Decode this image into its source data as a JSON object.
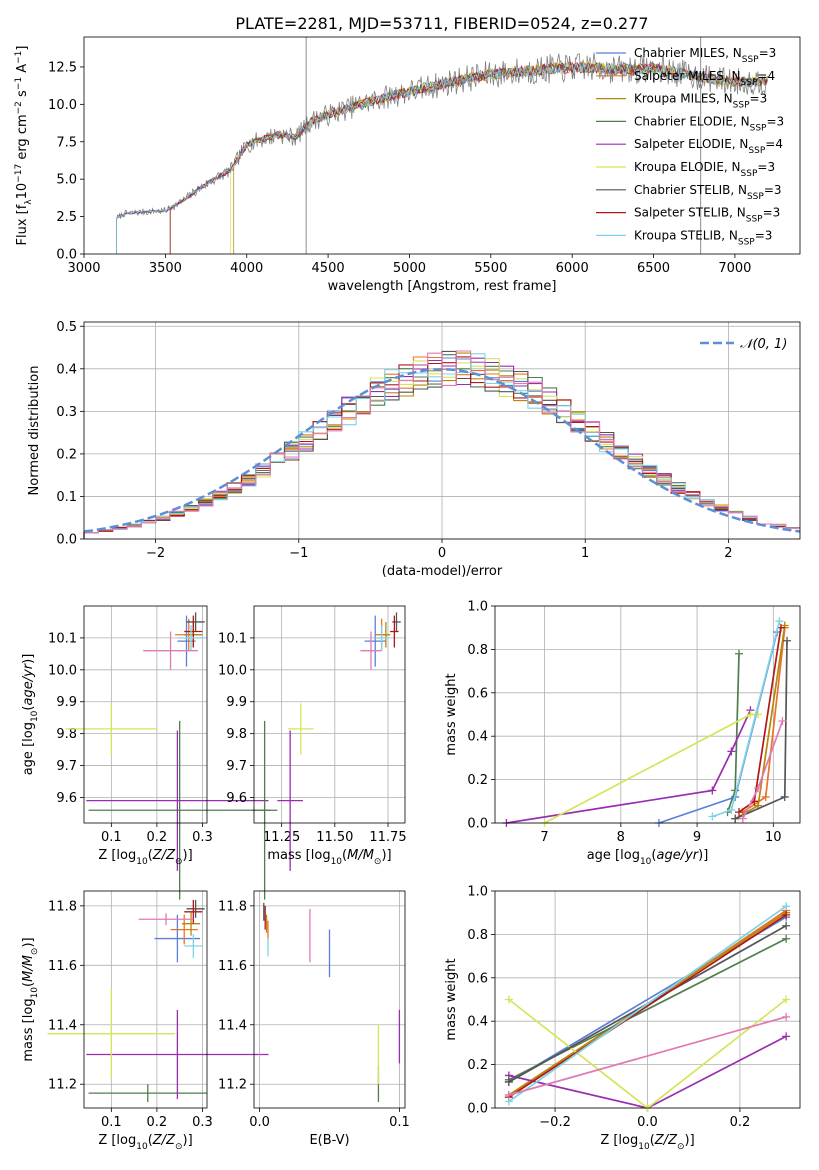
{
  "figure_title": "PLATE=2281, MJD=53711, FIBERID=0524, z=0.277",
  "colors": {
    "Chabrier MILES": "#5b7fd8",
    "Salpeter MILES": "#e8742a",
    "Kroupa MILES": "#b8860b",
    "Chabrier ELODIE": "#507d50",
    "Salpeter ELODIE": "#9a2cb0",
    "Kroupa ELODIE": "#d4e55a",
    "Chabrier STELIB": "#555555",
    "Salpeter STELIB": "#b01818",
    "Kroupa STELIB": "#7fd3e6",
    "pink": "#e07ab4",
    "normal": "#5b8fd8"
  },
  "chart_data": [
    {
      "id": "spectrum",
      "type": "line",
      "title": "PLATE=2281, MJD=53711, FIBERID=0524, z=0.277",
      "xlabel": "wavelength [Angstrom, rest frame]",
      "ylabel": "Flux [f_λ 10^-17 erg cm^-2 s^-1 A^-1]",
      "xlim": [
        3000,
        7400
      ],
      "ylim": [
        0,
        14.5
      ],
      "xticks": [
        "3000",
        "3500",
        "4000",
        "4500",
        "5000",
        "5500",
        "6000",
        "6500",
        "7000"
      ],
      "yticks": [
        "0.0",
        "2.5",
        "5.0",
        "7.5",
        "10.0",
        "12.5"
      ],
      "legend_position": "top-right",
      "legend": [
        "Chabrier MILES, N_SSP=3",
        "Salpeter MILES, N_SSP=4",
        "Kroupa MILES, N_SSP=3",
        "Chabrier ELODIE, N_SSP=3",
        "Salpeter ELODIE, N_SSP=4",
        "Kroupa ELODIE, N_SSP=3",
        "Chabrier STELIB, N_SSP=3",
        "Salpeter STELIB, N_SSP=3",
        "Kroupa STELIB, N_SSP=3"
      ],
      "legend_labels": [
        {
          "pre": "Chabrier MILES, N",
          "sub": "SSP",
          "post": "=3"
        },
        {
          "pre": "Salpeter MILES, N",
          "sub": "SSP",
          "post": "=4"
        },
        {
          "pre": "Kroupa MILES, N",
          "sub": "SSP",
          "post": "=3"
        },
        {
          "pre": "Chabrier ELODIE, N",
          "sub": "SSP",
          "post": "=3"
        },
        {
          "pre": "Salpeter ELODIE, N",
          "sub": "SSP",
          "post": "=4"
        },
        {
          "pre": "Kroupa ELODIE, N",
          "sub": "SSP",
          "post": "=3"
        },
        {
          "pre": "Chabrier STELIB, N",
          "sub": "SSP",
          "post": "=3"
        },
        {
          "pre": "Salpeter STELIB, N",
          "sub": "SSP",
          "post": "=3"
        },
        {
          "pre": "Kroupa STELIB, N",
          "sub": "SSP",
          "post": "=3"
        }
      ],
      "series_start": [
        3200,
        3200,
        3920,
        3530,
        3200,
        3900,
        3200,
        3530,
        3200
      ],
      "series_end": [
        7200,
        7200,
        7200,
        7200,
        7200,
        7200,
        7200,
        7200,
        7200
      ],
      "continuum": {
        "x": [
          3200,
          3250,
          3350,
          3500,
          3600,
          3700,
          3800,
          3900,
          4000,
          4100,
          4200,
          4300,
          4400,
          4500,
          4700,
          4900,
          5100,
          5300,
          5500,
          5700,
          5900,
          6100,
          6300,
          6500,
          6700,
          6900,
          7100,
          7200
        ],
        "y": [
          2.4,
          2.7,
          2.8,
          2.9,
          3.5,
          4.3,
          5.0,
          5.6,
          7.3,
          7.7,
          8.0,
          7.8,
          8.9,
          9.3,
          10.0,
          10.6,
          11.1,
          11.6,
          12.0,
          12.2,
          12.4,
          12.5,
          12.3,
          12.4,
          12.0,
          11.6,
          11.5,
          11.6
        ]
      },
      "spikes": [
        {
          "x": 4365,
          "y": 14.5
        },
        {
          "x": 6790,
          "y": 14.5
        }
      ]
    },
    {
      "id": "residuals",
      "type": "bar",
      "xlabel": "(data-model)/error",
      "ylabel": "Normed distribution",
      "xlim": [
        -2.5,
        2.5
      ],
      "ylim": [
        0,
        0.51
      ],
      "xticks": [
        "−2",
        "−1",
        "0",
        "1",
        "2"
      ],
      "yticks": [
        "0.0",
        "0.1",
        "0.2",
        "0.3",
        "0.4",
        "0.5"
      ],
      "legend_position": "top-right",
      "legend": [
        "𝒩(0, 1)"
      ],
      "bin_width": 0.1,
      "bins_from": -2.5,
      "reference": "normal(0,1)"
    },
    {
      "id": "Z-age",
      "type": "scatter",
      "xlabel": "Z [log10(Z/Z⊙)]",
      "ylabel": "age [log10(age/yr)]",
      "xlim": [
        0.04,
        0.31
      ],
      "ylim": [
        9.52,
        10.2
      ],
      "xticks": [
        "0.1",
        "0.2",
        "0.3"
      ],
      "yticks": [
        "9.6",
        "9.7",
        "9.8",
        "9.9",
        "10.0",
        "10.1"
      ],
      "points": [
        {
          "series": "Chabrier MILES",
          "x": 0.265,
          "y": 10.09,
          "xerr": 0.02,
          "yerr": 0.08
        },
        {
          "series": "Salpeter MILES",
          "x": 0.27,
          "y": 10.11,
          "xerr": 0.03,
          "yerr": 0.05
        },
        {
          "series": "Kroupa MILES",
          "x": 0.28,
          "y": 10.11,
          "xerr": 0.02,
          "yerr": 0.04
        },
        {
          "series": "Chabrier ELODIE",
          "x": 0.25,
          "y": 9.56,
          "xerr": 0.2,
          "yerr": 0.28
        },
        {
          "series": "Salpeter ELODIE",
          "x": 0.245,
          "y": 9.59,
          "xerr": 0.2,
          "yerr": 0.22
        },
        {
          "series": "Kroupa ELODIE",
          "x": 0.1,
          "y": 9.815,
          "xerr": 0.1,
          "yerr": 0.08
        },
        {
          "series": "Chabrier STELIB",
          "x": 0.285,
          "y": 10.15,
          "xerr": 0.02,
          "yerr": 0.03
        },
        {
          "series": "Salpeter STELIB",
          "x": 0.28,
          "y": 10.12,
          "xerr": 0.02,
          "yerr": 0.05
        },
        {
          "series": "Kroupa STELIB",
          "x": 0.275,
          "y": 10.1,
          "xerr": 0.03,
          "yerr": 0.04
        },
        {
          "series": "pink",
          "x": 0.23,
          "y": 10.06,
          "xerr": 0.06,
          "yerr": 0.06
        }
      ]
    },
    {
      "id": "mass-age",
      "type": "scatter",
      "xlabel": "mass [log10(M/M⊙)]",
      "ylabel": "",
      "xlim": [
        11.12,
        11.83
      ],
      "ylim": [
        9.52,
        10.2
      ],
      "xticks": [
        "11.25",
        "11.50",
        "11.75"
      ],
      "yticks": [
        "9.6",
        "9.7",
        "9.8",
        "9.9",
        "10.0",
        "10.1"
      ],
      "points": [
        {
          "series": "Chabrier MILES",
          "x": 11.69,
          "y": 10.09,
          "xerr": 0.05,
          "yerr": 0.08
        },
        {
          "series": "Salpeter MILES",
          "x": 11.72,
          "y": 10.11,
          "xerr": 0.03,
          "yerr": 0.05
        },
        {
          "series": "Kroupa MILES",
          "x": 11.74,
          "y": 10.11,
          "xerr": 0.02,
          "yerr": 0.04
        },
        {
          "series": "Chabrier ELODIE",
          "x": 11.17,
          "y": 9.56,
          "xerr": 0.06,
          "yerr": 0.28
        },
        {
          "series": "Salpeter ELODIE",
          "x": 11.29,
          "y": 9.59,
          "xerr": 0.06,
          "yerr": 0.22
        },
        {
          "series": "Kroupa ELODIE",
          "x": 11.34,
          "y": 9.815,
          "xerr": 0.06,
          "yerr": 0.08
        },
        {
          "series": "Chabrier STELIB",
          "x": 11.79,
          "y": 10.15,
          "xerr": 0.02,
          "yerr": 0.03
        },
        {
          "series": "Salpeter STELIB",
          "x": 11.78,
          "y": 10.12,
          "xerr": 0.02,
          "yerr": 0.05
        },
        {
          "series": "Kroupa STELIB",
          "x": 11.72,
          "y": 10.1,
          "xerr": 0.03,
          "yerr": 0.04
        },
        {
          "series": "pink",
          "x": 11.67,
          "y": 10.06,
          "xerr": 0.05,
          "yerr": 0.06
        }
      ]
    },
    {
      "id": "age-weight",
      "type": "line",
      "xlabel": "age [log10(age/yr)]",
      "ylabel": "mass weight",
      "xlim": [
        6.35,
        10.35
      ],
      "ylim": [
        0,
        1.0
      ],
      "xticks": [
        "7",
        "8",
        "9",
        "10"
      ],
      "yticks": [
        "0.0",
        "0.2",
        "0.4",
        "0.6",
        "0.8",
        "1.0"
      ],
      "series": [
        {
          "name": "Chabrier MILES",
          "x": [
            8.5,
            9.5,
            10.05
          ],
          "y": [
            0.0,
            0.12,
            0.88
          ]
        },
        {
          "name": "Salpeter MILES",
          "x": [
            9.6,
            9.9,
            10.15
          ],
          "y": [
            0.05,
            0.12,
            0.9
          ]
        },
        {
          "name": "Kroupa MILES",
          "x": [
            9.5,
            9.8,
            10.15
          ],
          "y": [
            0.02,
            0.08,
            0.91
          ]
        },
        {
          "name": "Chabrier ELODIE",
          "x": [
            9.4,
            9.5,
            9.55
          ],
          "y": [
            0.05,
            0.15,
            0.78
          ]
        },
        {
          "name": "Salpeter ELODIE",
          "x": [
            6.5,
            9.2,
            9.45,
            9.7
          ],
          "y": [
            0.0,
            0.15,
            0.33,
            0.52
          ]
        },
        {
          "name": "Kroupa ELODIE",
          "x": [
            7.0,
            9.7,
            9.8
          ],
          "y": [
            0.0,
            0.5,
            0.5
          ]
        },
        {
          "name": "Chabrier STELIB",
          "x": [
            9.5,
            10.15,
            10.18
          ],
          "y": [
            0.02,
            0.12,
            0.84
          ]
        },
        {
          "name": "Salpeter STELIB",
          "x": [
            9.55,
            9.75,
            10.1
          ],
          "y": [
            0.05,
            0.1,
            0.9
          ]
        },
        {
          "name": "Kroupa STELIB",
          "x": [
            9.2,
            9.45,
            10.08
          ],
          "y": [
            0.03,
            0.06,
            0.93
          ]
        },
        {
          "name": "pink",
          "x": [
            9.6,
            9.8,
            10.12
          ],
          "y": [
            0.02,
            0.16,
            0.47
          ]
        }
      ]
    },
    {
      "id": "Z-mass",
      "type": "scatter",
      "xlabel": "Z [log10(Z/Z⊙)]",
      "ylabel": "mass [log10(M/M⊙)]",
      "xlim": [
        0.04,
        0.31
      ],
      "ylim": [
        11.12,
        11.85
      ],
      "xticks": [
        "0.1",
        "0.2",
        "0.3"
      ],
      "yticks": [
        "11.2",
        "11.4",
        "11.6",
        "11.8"
      ],
      "points": [
        {
          "series": "Chabrier MILES",
          "x": 0.245,
          "y": 11.69,
          "xerr": 0.05,
          "yerr": 0.08
        },
        {
          "series": "Salpeter MILES",
          "x": 0.26,
          "y": 11.72,
          "xerr": 0.03,
          "yerr": 0.05
        },
        {
          "series": "Kroupa MILES",
          "x": 0.275,
          "y": 11.74,
          "xerr": 0.02,
          "yerr": 0.04
        },
        {
          "series": "Chabrier ELODIE",
          "x": 0.18,
          "y": 11.17,
          "xerr": 0.13,
          "yerr": 0.03
        },
        {
          "series": "Salpeter ELODIE",
          "x": 0.245,
          "y": 11.3,
          "xerr": 0.2,
          "yerr": 0.15
        },
        {
          "series": "Kroupa ELODIE",
          "x": 0.1,
          "y": 11.37,
          "xerr": 0.14,
          "yerr": 0.15
        },
        {
          "series": "Chabrier STELIB",
          "x": 0.285,
          "y": 11.79,
          "xerr": 0.02,
          "yerr": 0.03
        },
        {
          "series": "Salpeter STELIB",
          "x": 0.28,
          "y": 11.78,
          "xerr": 0.02,
          "yerr": 0.04
        },
        {
          "series": "Kroupa STELIB",
          "x": 0.28,
          "y": 11.665,
          "xerr": 0.02,
          "yerr": 0.04
        },
        {
          "series": "pink",
          "x": 0.22,
          "y": 11.755,
          "xerr": 0.06,
          "yerr": 0.02
        }
      ]
    },
    {
      "id": "EBV-mass",
      "type": "scatter",
      "xlabel": "E(B-V)",
      "ylabel": "",
      "xlim": [
        -0.004,
        0.104
      ],
      "ylim": [
        11.12,
        11.85
      ],
      "xticks": [
        "0.0",
        "0.1"
      ],
      "yticks": [
        "11.2",
        "11.4",
        "11.6",
        "11.8"
      ],
      "points": [
        {
          "series": "Chabrier MILES",
          "x": 0.05,
          "y": 11.64,
          "yerr": 0.08
        },
        {
          "series": "Salpeter MILES",
          "x": 0.006,
          "y": 11.72,
          "yerr": 0.03
        },
        {
          "series": "Kroupa MILES",
          "x": 0.005,
          "y": 11.74,
          "yerr": 0.03
        },
        {
          "series": "Chabrier ELODIE",
          "x": 0.085,
          "y": 11.2,
          "yerr": 0.06
        },
        {
          "series": "Salpeter ELODIE",
          "x": 0.1,
          "y": 11.36,
          "yerr": 0.09
        },
        {
          "series": "Kroupa ELODIE",
          "x": 0.085,
          "y": 11.3,
          "yerr": 0.1
        },
        {
          "series": "Chabrier STELIB",
          "x": 0.003,
          "y": 11.78,
          "yerr": 0.03
        },
        {
          "series": "Salpeter STELIB",
          "x": 0.004,
          "y": 11.76,
          "yerr": 0.04
        },
        {
          "series": "Kroupa STELIB",
          "x": 0.006,
          "y": 11.66,
          "yerr": 0.03
        },
        {
          "series": "pink",
          "x": 0.036,
          "y": 11.7,
          "yerr": 0.09
        }
      ]
    },
    {
      "id": "Z-weight",
      "type": "line",
      "xlabel": "Z [log10(Z/Z⊙)]",
      "ylabel": "mass weight",
      "xlim": [
        -0.33,
        0.33
      ],
      "ylim": [
        0,
        1.0
      ],
      "xticks": [
        "−0.2",
        "0.0",
        "0.2"
      ],
      "yticks": [
        "0.0",
        "0.2",
        "0.4",
        "0.6",
        "0.8",
        "1.0"
      ],
      "series": [
        {
          "name": "Chabrier MILES",
          "x": [
            -0.3,
            0.3
          ],
          "y": [
            0.12,
            0.88
          ]
        },
        {
          "name": "Salpeter MILES",
          "x": [
            -0.3,
            0.3
          ],
          "y": [
            0.05,
            0.91
          ]
        },
        {
          "name": "Kroupa MILES",
          "x": [
            -0.3,
            0.3
          ],
          "y": [
            0.06,
            0.9
          ]
        },
        {
          "name": "Chabrier ELODIE",
          "x": [
            -0.3,
            0.3
          ],
          "y": [
            0.13,
            0.78
          ]
        },
        {
          "name": "Salpeter ELODIE",
          "x": [
            -0.3,
            0.0,
            0.3
          ],
          "y": [
            0.15,
            0.0,
            0.33
          ]
        },
        {
          "name": "Kroupa ELODIE",
          "x": [
            -0.3,
            0.0,
            0.3
          ],
          "y": [
            0.5,
            0.0,
            0.5
          ]
        },
        {
          "name": "Chabrier STELIB",
          "x": [
            -0.3,
            0.3
          ],
          "y": [
            0.12,
            0.84
          ]
        },
        {
          "name": "Salpeter STELIB",
          "x": [
            -0.3,
            0.3
          ],
          "y": [
            0.05,
            0.89
          ]
        },
        {
          "name": "Kroupa STELIB",
          "x": [
            -0.3,
            0.3
          ],
          "y": [
            0.03,
            0.93
          ]
        },
        {
          "name": "pink",
          "x": [
            -0.3,
            0.3
          ],
          "y": [
            0.06,
            0.42
          ]
        }
      ]
    }
  ]
}
